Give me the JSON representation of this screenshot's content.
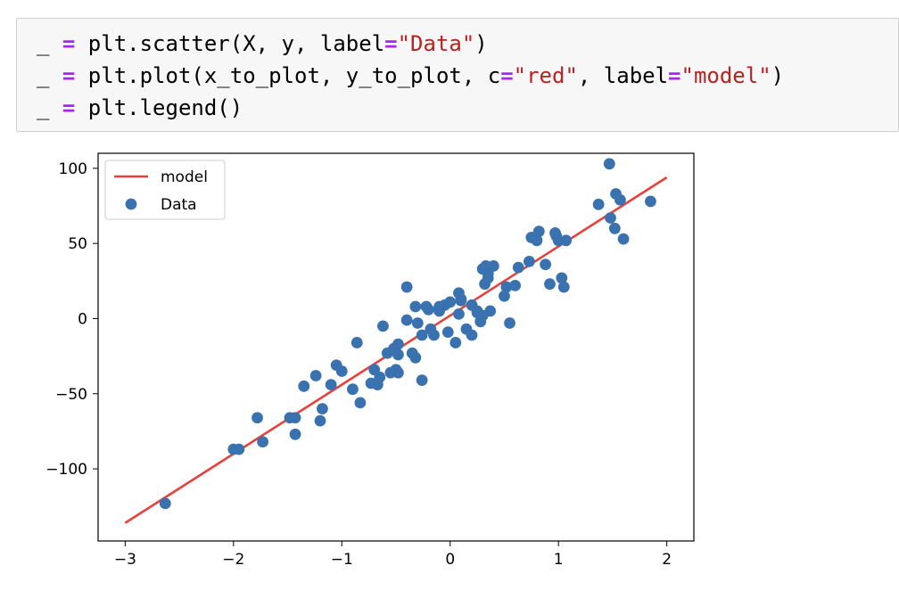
{
  "code": {
    "lines": [
      {
        "pre": "_ ",
        "op": "=",
        "mid": " plt.scatter(X, y, label",
        "op2": "=",
        "str1": "\"Data\"",
        "mid2": "",
        "op3": "",
        "str2": "",
        "post": ")"
      },
      {
        "pre": "_ ",
        "op": "=",
        "mid": " plt.plot(x_to_plot, y_to_plot, c",
        "op2": "=",
        "str1": "\"red\"",
        "mid2": ", label",
        "op3": "=",
        "str2": "\"model\"",
        "post": ")"
      },
      {
        "pre": "_ ",
        "op": "=",
        "mid": " plt.legend()",
        "op2": "",
        "str1": "",
        "mid2": "",
        "op3": "",
        "str2": "",
        "post": ""
      }
    ]
  },
  "chart_data": {
    "type": "scatter",
    "title": "",
    "xlabel": "",
    "ylabel": "",
    "xlim": [
      -3.25,
      2.25
    ],
    "ylim": [
      -148,
      110
    ],
    "xticks": [
      -3,
      -2,
      -1,
      0,
      1,
      2
    ],
    "xtick_labels": [
      "−3",
      "−2",
      "−1",
      "0",
      "1",
      "2"
    ],
    "yticks": [
      -100,
      -50,
      0,
      50,
      100
    ],
    "ytick_labels": [
      "−100",
      "−50",
      "0",
      "50",
      "100"
    ],
    "grid": false,
    "legend_position": "top-left",
    "series": [
      {
        "name": "model",
        "kind": "line",
        "color": "#e8413c",
        "x": [
          -3,
          2
        ],
        "y": [
          -136,
          94
        ]
      },
      {
        "name": "Data",
        "kind": "scatter",
        "color": "#3a72b0",
        "x": [
          -2.63,
          -2.0,
          -1.95,
          -1.78,
          -1.73,
          -1.48,
          -1.43,
          -1.43,
          -1.35,
          -1.24,
          -1.2,
          -1.18,
          -1.1,
          -1.05,
          -1.0,
          -0.9,
          -0.86,
          -0.83,
          -0.73,
          -0.7,
          -0.67,
          -0.65,
          -0.62,
          -0.58,
          -0.55,
          -0.52,
          -0.5,
          -0.48,
          -0.48,
          -0.48,
          -0.4,
          -0.4,
          -0.35,
          -0.32,
          -0.32,
          -0.3,
          -0.26,
          -0.26,
          -0.22,
          -0.2,
          -0.18,
          -0.15,
          -0.1,
          -0.1,
          -0.05,
          -0.02,
          0.0,
          0.05,
          0.08,
          0.08,
          0.1,
          0.1,
          0.15,
          0.2,
          0.2,
          0.25,
          0.25,
          0.28,
          0.3,
          0.3,
          0.32,
          0.33,
          0.35,
          0.35,
          0.37,
          0.4,
          0.5,
          0.52,
          0.55,
          0.6,
          0.63,
          0.73,
          0.75,
          0.8,
          0.82,
          0.88,
          0.92,
          0.97,
          0.98,
          1.0,
          1.03,
          1.05,
          1.07,
          1.37,
          1.47,
          1.48,
          1.52,
          1.53,
          1.57,
          1.6,
          1.85
        ],
        "y": [
          -123,
          -87,
          -87,
          -66,
          -82,
          -66,
          -66,
          -77,
          -45,
          -38,
          -68,
          -60,
          -44,
          -31,
          -35,
          -47,
          -16,
          -56,
          -43,
          -34,
          -44,
          -39,
          -5,
          -23,
          -36,
          -20,
          -34,
          -24,
          -17,
          -36,
          21,
          -1,
          -23,
          -26,
          8,
          -3,
          -11,
          -41,
          8,
          6,
          -7,
          -11,
          5,
          8,
          9,
          -9,
          11,
          -16,
          3,
          17,
          13,
          12,
          -7,
          -11,
          9,
          5,
          4,
          -2,
          2,
          33,
          23,
          35,
          30,
          27,
          5,
          35,
          15,
          21,
          -3,
          22,
          34,
          38,
          54,
          52,
          58,
          36,
          23,
          57,
          55,
          52,
          27,
          21,
          52,
          76,
          103,
          67,
          60,
          83,
          79,
          53,
          78
        ]
      }
    ]
  }
}
